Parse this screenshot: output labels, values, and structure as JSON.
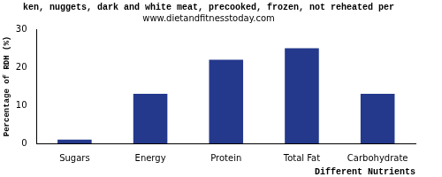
{
  "chart_data": {
    "type": "bar",
    "title": "ken, nuggets, dark and white meat, precooked, frozen, not reheated per",
    "subtitle": "www.dietandfitnesstoday.com",
    "x_label": "Different Nutrients",
    "y_label": "Percentage of RDH (%)",
    "categories": [
      "Sugars",
      "Energy",
      "Protein",
      "Total Fat",
      "Carbohydrate"
    ],
    "values": [
      1,
      13,
      22,
      25,
      13
    ],
    "color": "#24398c",
    "ylim": [
      0,
      30
    ],
    "yticks": [
      0,
      10,
      20,
      30
    ],
    "grid": false
  }
}
